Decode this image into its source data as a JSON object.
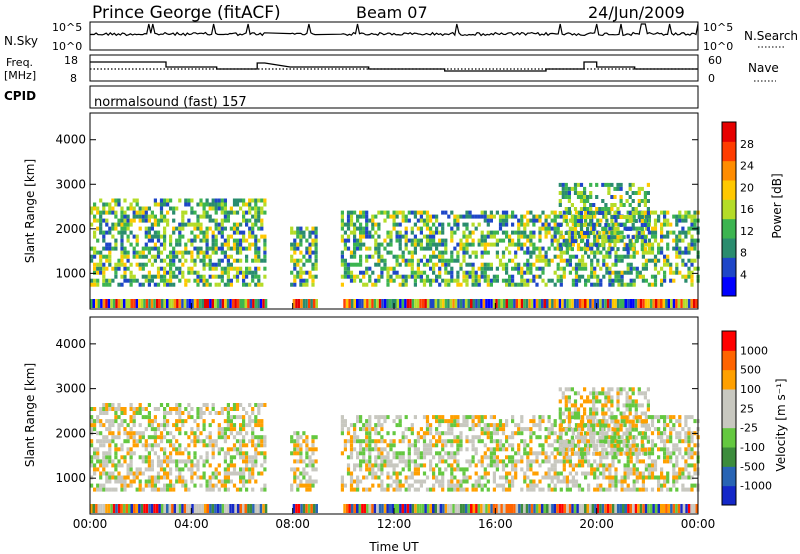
{
  "header": {
    "station": "Prince George (fitACF)",
    "beam": "Beam 07",
    "date": "24/Jun/2009"
  },
  "panels": {
    "nsky": {
      "label": "N.Sky",
      "ticks_left": [
        "10^5",
        "10^0"
      ],
      "right_label": "N.Search",
      "ticks_right": [
        "10^5",
        "10^0"
      ]
    },
    "freq": {
      "label_line1": "Freq.",
      "label_line2": "[MHz]",
      "ticks_left": [
        "18",
        "8"
      ],
      "right_label": "Nave",
      "ticks_right": [
        "60",
        "0"
      ]
    },
    "cpid": {
      "label": "CPID",
      "value": "normalsound (fast) 157"
    }
  },
  "chart_data": [
    {
      "type": "heatmap",
      "name_shown": "Power",
      "xlabel": "Time UT",
      "ylabel": "Slant Range [km]",
      "x_ticks": [
        "00:00",
        "04:00",
        "08:00",
        "12:00",
        "16:00",
        "20:00",
        "00:00"
      ],
      "y_ticks": [
        1000,
        2000,
        3000,
        4000
      ],
      "ylim": [
        200,
        4600
      ],
      "colorbar": {
        "label": "Power [dB]",
        "ticks": [
          "28",
          "24",
          "20",
          "16",
          "12",
          "8",
          "4"
        ],
        "colors": [
          "#0000ff",
          "#1e46c8",
          "#2a8c6e",
          "#3cb450",
          "#b4dc28",
          "#ffc800",
          "#ff8c00",
          "#ff3c00",
          "#e60000"
        ]
      }
    },
    {
      "type": "heatmap",
      "name_shown": "Velocity",
      "xlabel": "Time UT",
      "ylabel": "Slant Range [km]",
      "x_ticks": [
        "00:00",
        "04:00",
        "08:00",
        "12:00",
        "16:00",
        "20:00",
        "00:00"
      ],
      "y_ticks": [
        1000,
        2000,
        3000,
        4000
      ],
      "ylim": [
        200,
        4600
      ],
      "colorbar": {
        "label": "Velocity [m s⁻¹]",
        "ticks": [
          "1000",
          "500",
          "100",
          "25",
          "-25",
          "-100",
          "-500",
          "-1000"
        ],
        "colors": [
          "#1428c8",
          "#2864b4",
          "#3c8c3c",
          "#64c840",
          "#c8c8c0",
          "#c8c8c0",
          "#ffa000",
          "#ff6400",
          "#ff0000"
        ]
      }
    }
  ],
  "colors": {
    "axis": "#000000",
    "background": "#ffffff"
  }
}
